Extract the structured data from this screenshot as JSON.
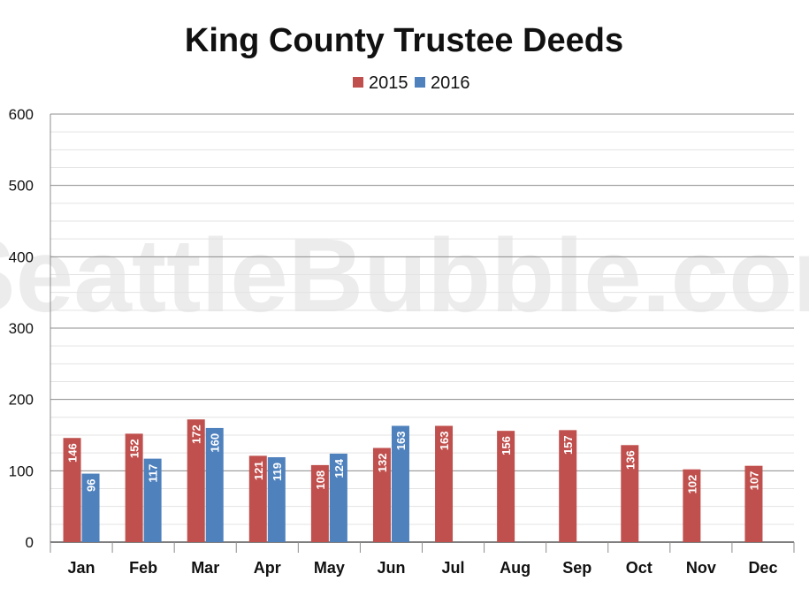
{
  "watermark": "SeattleBubble.com",
  "colors": {
    "s2015": "#c0504d",
    "s2016": "#4f81bd",
    "grid_major": "#8c8c8c",
    "grid_minor": "#e3e3e3"
  },
  "chart_data": {
    "type": "bar",
    "title": "King County Trustee Deeds",
    "xlabel": "",
    "ylabel": "",
    "ylim": [
      0,
      600
    ],
    "yticks": [
      0,
      100,
      200,
      300,
      400,
      500,
      600
    ],
    "grid": true,
    "legend_position": "top-center",
    "categories": [
      "Jan",
      "Feb",
      "Mar",
      "Apr",
      "May",
      "Jun",
      "Jul",
      "Aug",
      "Sep",
      "Oct",
      "Nov",
      "Dec"
    ],
    "series": [
      {
        "name": "2015",
        "color": "#c0504d",
        "values": [
          146,
          152,
          172,
          121,
          108,
          132,
          163,
          156,
          157,
          136,
          102,
          107
        ]
      },
      {
        "name": "2016",
        "color": "#4f81bd",
        "values": [
          96,
          117,
          160,
          119,
          124,
          163,
          null,
          null,
          null,
          null,
          null,
          null
        ]
      }
    ]
  }
}
